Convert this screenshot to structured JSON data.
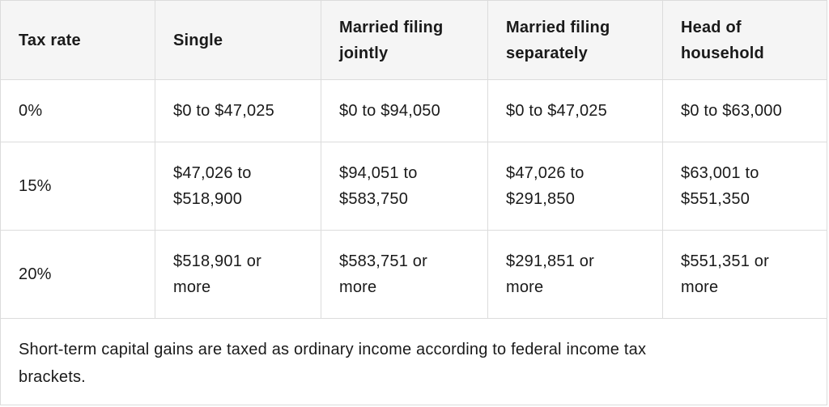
{
  "table": {
    "headers": [
      [
        "Tax rate"
      ],
      [
        "Single"
      ],
      [
        "Married filing",
        "jointly"
      ],
      [
        "Married filing",
        "separately"
      ],
      [
        "Head of",
        "household"
      ]
    ],
    "rows": [
      {
        "rate": "0%",
        "cells": [
          [
            "$0 to $47,025"
          ],
          [
            "$0 to $94,050"
          ],
          [
            "$0 to $47,025"
          ],
          [
            "$0 to $63,000"
          ]
        ]
      },
      {
        "rate": "15%",
        "cells": [
          [
            "$47,026 to",
            "$518,900"
          ],
          [
            "$94,051 to",
            "$583,750"
          ],
          [
            "$47,026 to",
            "$291,850"
          ],
          [
            "$63,001 to",
            "$551,350"
          ]
        ]
      },
      {
        "rate": "20%",
        "cells": [
          [
            "$518,901 or",
            "more"
          ],
          [
            "$583,751 or",
            "more"
          ],
          [
            "$291,851 or",
            "more"
          ],
          [
            "$551,351 or",
            "more"
          ]
        ]
      }
    ],
    "footnote": [
      "Short-term capital gains are taxed as ordinary income according to federal income tax",
      "brackets."
    ]
  },
  "colors": {
    "header_background": "#f5f5f5",
    "border": "#dcdcdc",
    "text": "#1a1a1a"
  }
}
